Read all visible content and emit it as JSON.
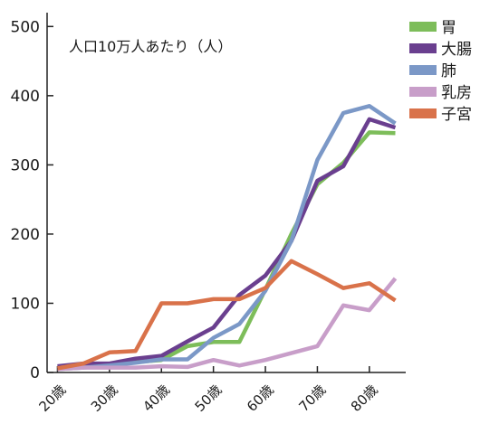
{
  "chart_data": {
    "type": "line",
    "unit_label": "人口10万人あたり（人）",
    "ylim": [
      0,
      520
    ],
    "yticks": [
      "0",
      "100",
      "200",
      "300",
      "400",
      "500"
    ],
    "ytick_values": [
      0,
      100,
      200,
      300,
      400,
      500
    ],
    "x": [
      20,
      25,
      30,
      35,
      40,
      45,
      50,
      55,
      60,
      65,
      70,
      75,
      80,
      85
    ],
    "xlim": [
      18,
      87
    ],
    "xticks": [
      "20歳",
      "30歳",
      "40歳",
      "50歳",
      "60歳",
      "70歳",
      "80歳"
    ],
    "xtick_values": [
      20,
      30,
      40,
      50,
      60,
      70,
      80
    ],
    "grid": false,
    "legend_position": "top-right",
    "series": [
      {
        "name": "胃",
        "color": "#7dbd5a",
        "values": [
          8,
          10,
          12,
          15,
          18,
          38,
          44,
          44,
          120,
          200,
          272,
          303,
          347,
          346
        ]
      },
      {
        "name": "大腸",
        "color": "#6a3f8f",
        "values": [
          9,
          13,
          13,
          20,
          24,
          45,
          65,
          112,
          140,
          190,
          277,
          298,
          366,
          354
        ]
      },
      {
        "name": "肺",
        "color": "#7b98c7",
        "values": [
          5,
          7,
          10,
          14,
          19,
          19,
          50,
          70,
          118,
          190,
          307,
          375,
          385,
          360
        ]
      },
      {
        "name": "乳房",
        "color": "#c89ec9",
        "values": [
          5,
          7,
          7,
          7,
          9,
          8,
          18,
          10,
          18,
          28,
          38,
          97,
          90,
          136
        ]
      },
      {
        "name": "子宮",
        "color": "#d9724a",
        "values": [
          6,
          13,
          29,
          31,
          100,
          100,
          106,
          106,
          122,
          161,
          142,
          122,
          129,
          104
        ]
      }
    ]
  }
}
